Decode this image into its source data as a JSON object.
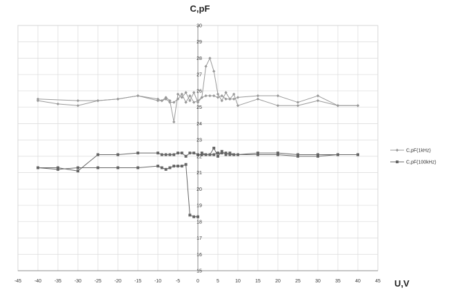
{
  "chart_data": {
    "type": "line",
    "title": "",
    "xlabel": "U,V",
    "ylabel": "C,pF",
    "xlim": [
      -45,
      45
    ],
    "ylim": [
      15,
      30
    ],
    "x_ticks": [
      -45,
      -40,
      -35,
      -30,
      -25,
      -20,
      -15,
      -10,
      -5,
      0,
      5,
      10,
      15,
      20,
      25,
      30,
      35,
      40,
      45
    ],
    "y_ticks": [
      15,
      16,
      17,
      18,
      19,
      20,
      21,
      22,
      23,
      24,
      25,
      26,
      27,
      28,
      29,
      30
    ],
    "grid": true,
    "legend_position": "right",
    "series": [
      {
        "name": "C,pF(1kHz)",
        "marker": "diamond",
        "color": "#999999",
        "segments": [
          {
            "x": [
              -40,
              -35,
              -30,
              -25,
              -20,
              -15,
              -10,
              -9,
              -8,
              -7,
              -6,
              -5,
              -4,
              -3,
              -2,
              -1,
              0,
              1,
              2,
              3,
              4,
              5,
              6,
              7,
              8,
              9,
              10,
              15,
              20,
              25,
              30,
              35,
              40
            ],
            "y": [
              25.4,
              25.2,
              25.1,
              25.4,
              25.5,
              25.7,
              25.4,
              25.4,
              25.6,
              25.4,
              24.1,
              25.8,
              25.6,
              25.9,
              25.4,
              25.9,
              25.3,
              25.6,
              27.5,
              28.0,
              27.2,
              25.8,
              25.4,
              25.9,
              25.5,
              25.8,
              25.1,
              25.5,
              25.1,
              25.1,
              25.4,
              25.1,
              25.1
            ]
          },
          {
            "x": [
              -40,
              -30,
              -25,
              -20,
              -15,
              -10,
              -9,
              -8,
              -7,
              -6,
              -5,
              -4,
              -3,
              -2,
              -1,
              0,
              1,
              2,
              3,
              4,
              5,
              6,
              7,
              8,
              9,
              10,
              15,
              20,
              25,
              30,
              35,
              40
            ],
            "y": [
              25.5,
              25.4,
              25.4,
              25.5,
              25.7,
              25.5,
              25.4,
              25.5,
              25.3,
              25.3,
              25.5,
              25.8,
              25.3,
              25.7,
              25.3,
              25.4,
              25.6,
              25.7,
              25.7,
              25.7,
              25.6,
              25.7,
              25.5,
              25.5,
              25.5,
              25.6,
              25.7,
              25.7,
              25.3,
              25.7,
              25.1,
              25.1
            ]
          }
        ]
      },
      {
        "name": "C,pF(100kHz)",
        "marker": "square",
        "color": "#666666",
        "segments": [
          {
            "x": [
              -40,
              -35,
              -30,
              -25,
              -20,
              -15,
              -10,
              -9,
              -8,
              -7,
              -6,
              -5,
              -4,
              -3,
              -2,
              -1,
              0,
              1,
              2,
              3,
              4,
              5,
              6,
              7,
              8,
              9,
              10,
              15,
              20,
              25,
              30,
              35,
              40
            ],
            "y": [
              21.3,
              21.3,
              21.1,
              22.1,
              22.1,
              22.2,
              22.2,
              22.1,
              22.1,
              22.1,
              22.1,
              22.2,
              22.2,
              22.0,
              22.2,
              22.2,
              22.1,
              22.1,
              22.1,
              22.1,
              22.5,
              22.0,
              22.3,
              22.1,
              22.2,
              22.1,
              22.1,
              22.1,
              22.1,
              22.0,
              22.0,
              22.1,
              22.1
            ]
          },
          {
            "x": [
              -40,
              -35,
              -30,
              -25,
              -20,
              -15,
              -10,
              -9,
              -8,
              -7,
              -6,
              -5,
              -4,
              -3,
              -2,
              -1,
              0
            ],
            "y": [
              21.3,
              21.2,
              21.3,
              21.3,
              21.3,
              21.3,
              21.4,
              21.3,
              21.2,
              21.3,
              21.4,
              21.4,
              21.4,
              21.5,
              18.4,
              18.3,
              18.3
            ]
          },
          {
            "x": [
              1,
              2,
              3,
              4,
              5,
              6,
              7,
              8,
              9,
              10,
              15,
              20,
              25,
              30,
              35,
              40
            ],
            "y": [
              22.2,
              22.1,
              22.1,
              22.1,
              22.2,
              22.2,
              22.2,
              22.1,
              22.1,
              22.1,
              22.2,
              22.2,
              22.1,
              22.1,
              22.1,
              22.1
            ]
          }
        ]
      }
    ]
  }
}
